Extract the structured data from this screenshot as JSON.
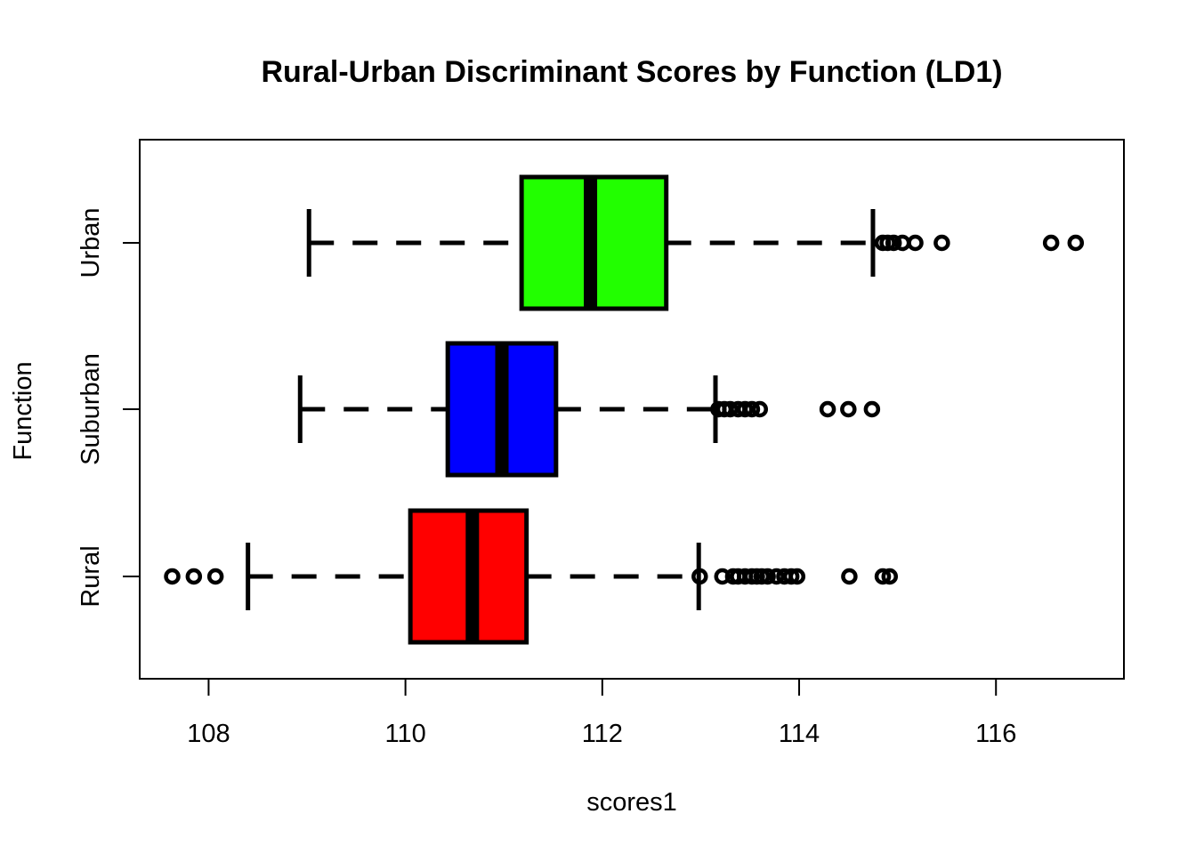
{
  "chart_data": {
    "type": "boxplot",
    "orientation": "horizontal",
    "title": "Rural-Urban Discriminant Scores by Function (LD1)",
    "xlabel": "scores1",
    "ylabel": "Function",
    "xlim": [
      107.3,
      117.3
    ],
    "xticks": [
      108,
      110,
      112,
      114,
      116
    ],
    "grid": false,
    "legend": "none",
    "categories": [
      "Rural",
      "Suburban",
      "Urban"
    ],
    "series": [
      {
        "name": "Rural",
        "color": "#ff0000",
        "whisker_low": 108.4,
        "q1": 110.05,
        "median": 110.68,
        "q3": 111.23,
        "whisker_high": 112.98,
        "outliers": [
          107.63,
          107.85,
          108.07,
          112.99,
          113.22,
          113.33,
          113.38,
          113.45,
          113.52,
          113.57,
          113.62,
          113.68,
          113.77,
          113.85,
          113.92,
          113.98,
          114.51,
          114.85,
          114.92
        ]
      },
      {
        "name": "Suburban",
        "color": "#0000ff",
        "whisker_low": 108.93,
        "q1": 110.43,
        "median": 110.98,
        "q3": 111.53,
        "whisker_high": 113.15,
        "outliers": [
          113.18,
          113.24,
          113.3,
          113.38,
          113.45,
          113.52,
          113.6,
          114.29,
          114.5,
          114.74
        ]
      },
      {
        "name": "Urban",
        "color": "#22ff00",
        "whisker_low": 109.02,
        "q1": 111.18,
        "median": 111.88,
        "q3": 112.65,
        "whisker_high": 114.75,
        "outliers": [
          114.85,
          114.9,
          114.96,
          115.05,
          115.18,
          115.45,
          116.56,
          116.81
        ]
      }
    ]
  }
}
